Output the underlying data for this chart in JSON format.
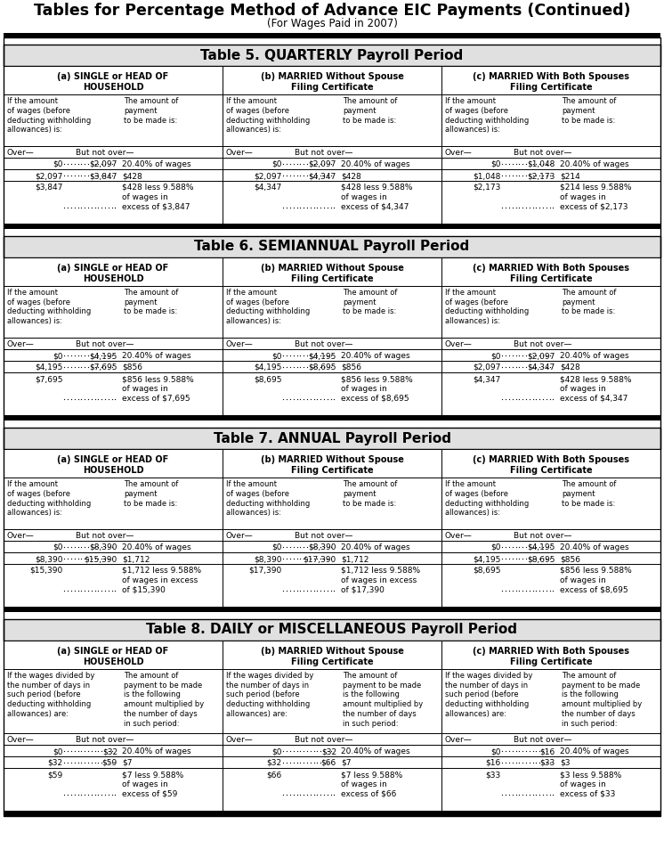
{
  "main_title": "Tables for Percentage Method of Advance EIC Payments (Continued)",
  "main_subtitle": "(For Wages Paid in 2007)",
  "tables": [
    {
      "title": "Table 5. QUARTERLY Payroll Period",
      "is_daily": false,
      "sections": [
        {
          "header1": "(a) SINGLE or HEAD OF",
          "header2": "HOUSEHOLD",
          "col_hdr_left": "If the amount\nof wages (before\ndeducting withholding\nallowances) is:",
          "col_hdr_right": "The amount of\npayment\nto be made is:",
          "over_label": "Over—",
          "but_label": "But not over—",
          "rows": [
            [
              "$0",
              "$2,097",
              "20.40% of wages"
            ],
            [
              "$2,097",
              "$3,847",
              "$428"
            ],
            [
              "$3,847",
              "",
              "$428 less 9.588%\nof wages in\nexcess of $3,847"
            ]
          ]
        },
        {
          "header1": "(b) MARRIED Without Spouse",
          "header2": "Filing Certificate",
          "col_hdr_left": "If the amount\nof wages (before\ndeducting withholding\nallowances) is:",
          "col_hdr_right": "The amount of\npayment\nto be made is:",
          "over_label": "Over—",
          "but_label": "But not over—",
          "rows": [
            [
              "$0",
              "$2,097",
              "20.40% of wages"
            ],
            [
              "$2,097",
              "$4,347",
              "$428"
            ],
            [
              "$4,347",
              "",
              "$428 less 9.588%\nof wages in\nexcess of $4,347"
            ]
          ]
        },
        {
          "header1": "(c) MARRIED With Both Spouses",
          "header2": "Filing Certificate",
          "col_hdr_left": "If the amount\nof wages (before\ndeducting withholding\nallowances) is:",
          "col_hdr_right": "The amount of\npayment\nto be made is:",
          "over_label": "Over—",
          "but_label": "But not over—",
          "rows": [
            [
              "$0",
              "$1,048",
              "20.40% of wages"
            ],
            [
              "$1,048",
              "$2,173",
              "$214"
            ],
            [
              "$2,173",
              "",
              "$214 less 9.588%\nof wages in\nexcess of $2,173"
            ]
          ]
        }
      ]
    },
    {
      "title": "Table 6. SEMIANNUAL Payroll Period",
      "is_daily": false,
      "sections": [
        {
          "header1": "(a) SINGLE or HEAD OF",
          "header2": "HOUSEHOLD",
          "col_hdr_left": "If the amount\nof wages (before\ndeducting withholding\nallowances) is:",
          "col_hdr_right": "The amount of\npayment\nto be made is:",
          "over_label": "Over—",
          "but_label": "But not over—",
          "rows": [
            [
              "$0",
              "$4,195",
              "20.40% of wages"
            ],
            [
              "$4,195",
              "$7,695",
              "$856"
            ],
            [
              "$7,695",
              "",
              "$856 less 9.588%\nof wages in\nexcess of $7,695"
            ]
          ]
        },
        {
          "header1": "(b) MARRIED Without Spouse",
          "header2": "Filing Certificate",
          "col_hdr_left": "If the amount\nof wages (before\ndeducting withholding\nallowances) is:",
          "col_hdr_right": "The amount of\npayment\nto be made is:",
          "over_label": "Over—",
          "but_label": "But not over—",
          "rows": [
            [
              "$0",
              "$4,195",
              "20.40% of wages"
            ],
            [
              "$4,195",
              "$8,695",
              "$856"
            ],
            [
              "$8,695",
              "",
              "$856 less 9.588%\nof wages in\nexcess of $8,695"
            ]
          ]
        },
        {
          "header1": "(c) MARRIED With Both Spouses",
          "header2": "Filing Certificate",
          "col_hdr_left": "If the amount\nof wages (before\ndeducting withholding\nallowances) is:",
          "col_hdr_right": "The amount of\npayment\nto be made is:",
          "over_label": "Over—",
          "but_label": "But not over—",
          "rows": [
            [
              "$0",
              "$2,097",
              "20.40% of wages"
            ],
            [
              "$2,097",
              "$4,347",
              "$428"
            ],
            [
              "$4,347",
              "",
              "$428 less 9.588%\nof wages in\nexcess of $4,347"
            ]
          ]
        }
      ]
    },
    {
      "title": "Table 7. ANNUAL Payroll Period",
      "is_daily": false,
      "sections": [
        {
          "header1": "(a) SINGLE or HEAD OF",
          "header2": "HOUSEHOLD",
          "col_hdr_left": "If the amount\nof wages (before\ndeducting withholding\nallowances) is:",
          "col_hdr_right": "The amount of\npayment\nto be made is:",
          "over_label": "Over—",
          "but_label": "But not over—",
          "rows": [
            [
              "$0",
              "$8,390",
              "20.40% of wages"
            ],
            [
              "$8,390",
              "$15,390",
              "$1,712"
            ],
            [
              "$15,390",
              "",
              "$1,712 less 9.588%\nof wages in excess\nof $15,390"
            ]
          ]
        },
        {
          "header1": "(b) MARRIED Without Spouse",
          "header2": "Filing Certificate",
          "col_hdr_left": "If the amount\nof wages (before\ndeducting withholding\nallowances) is:",
          "col_hdr_right": "The amount of\npayment\nto be made is:",
          "over_label": "Over—",
          "but_label": "But not over—",
          "rows": [
            [
              "$0",
              "$8,390",
              "20.40% of wages"
            ],
            [
              "$8,390",
              "$17,390",
              "$1,712"
            ],
            [
              "$17,390",
              "",
              "$1,712 less 9.588%\nof wages in excess\nof $17,390"
            ]
          ]
        },
        {
          "header1": "(c) MARRIED With Both Spouses",
          "header2": "Filing Certificate",
          "col_hdr_left": "If the amount\nof wages (before\ndeducting withholding\nallowances) is:",
          "col_hdr_right": "The amount of\npayment\nto be made is:",
          "over_label": "Over—",
          "but_label": "But not over—",
          "rows": [
            [
              "$0",
              "$4,195",
              "20.40% of wages"
            ],
            [
              "$4,195",
              "$8,695",
              "$856"
            ],
            [
              "$8,695",
              "",
              "$856 less 9.588%\nof wages in\nexcess of $8,695"
            ]
          ]
        }
      ]
    },
    {
      "title": "Table 8. DAILY or MISCELLANEOUS Payroll Period",
      "is_daily": true,
      "sections": [
        {
          "header1": "(a) SINGLE or HEAD OF",
          "header2": "HOUSEHOLD",
          "col_hdr_left": "If the wages divided by\nthe number of days in\nsuch period (before\ndeducting withholding\nallowances) are:",
          "col_hdr_right": "The amount of\npayment to be made\nis the following\namount multiplied by\nthe number of days\nin such period:",
          "over_label": "Over—",
          "but_label": "But not over—",
          "rows": [
            [
              "$0",
              "$32",
              "20.40% of wages"
            ],
            [
              "$32",
              "$59",
              "$7"
            ],
            [
              "$59",
              "",
              "$7 less 9.588%\nof wages in\nexcess of $59"
            ]
          ]
        },
        {
          "header1": "(b) MARRIED Without Spouse",
          "header2": "Filing Certificate",
          "col_hdr_left": "If the wages divided by\nthe number of days in\nsuch period (before\ndeducting withholding\nallowances) are:",
          "col_hdr_right": "The amount of\npayment to be made\nis the following\namount multiplied by\nthe number of days\nin such period:",
          "over_label": "Over—",
          "but_label": "But not over—",
          "rows": [
            [
              "$0",
              "$32",
              "20.40% of wages"
            ],
            [
              "$32",
              "$66",
              "$7"
            ],
            [
              "$66",
              "",
              "$7 less 9.588%\nof wages in\nexcess of $66"
            ]
          ]
        },
        {
          "header1": "(c) MARRIED With Both Spouses",
          "header2": "Filing Certificate",
          "col_hdr_left": "If the wages divided by\nthe number of days in\nsuch period (before\ndeducting withholding\nallowances) are:",
          "col_hdr_right": "The amount of\npayment to be made\nis the following\namount multiplied by\nthe number of days\nin such period:",
          "over_label": "Over—",
          "but_label": "But not over—",
          "rows": [
            [
              "$0",
              "$16",
              "20.40% of wages"
            ],
            [
              "$16",
              "$33",
              "$3"
            ],
            [
              "$33",
              "",
              "$3 less 9.588%\nof wages in\nexcess of $33"
            ]
          ]
        }
      ]
    }
  ]
}
